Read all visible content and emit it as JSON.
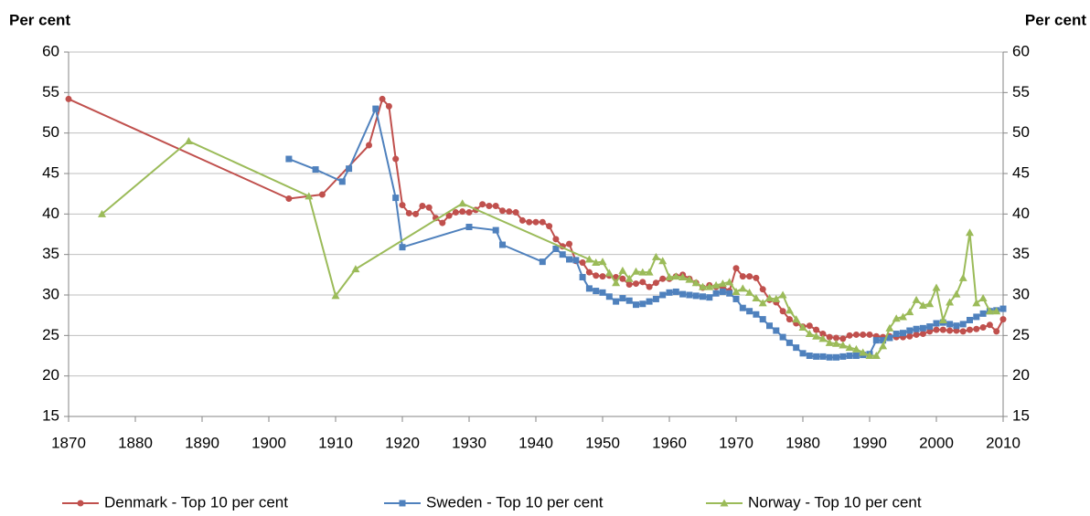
{
  "chart_data": {
    "type": "line",
    "y_label": "Per cent",
    "y2_label": "Per cent",
    "xlim": [
      1870,
      2010
    ],
    "xticks": [
      1870,
      1880,
      1890,
      1900,
      1910,
      1920,
      1930,
      1940,
      1950,
      1960,
      1970,
      1980,
      1990,
      2000,
      2010
    ],
    "ylim": [
      15,
      60
    ],
    "yticks": [
      15,
      20,
      25,
      30,
      35,
      40,
      45,
      50,
      55,
      60
    ],
    "y2lim": [
      15,
      60
    ],
    "y2ticks": [
      15,
      20,
      25,
      30,
      35,
      40,
      45,
      50,
      55,
      60
    ],
    "grid": true,
    "legend": "bottom",
    "series": [
      {
        "name": "Denmark - Top 10 per cent",
        "color": "#c0504d",
        "marker": "circle",
        "x": [
          1870,
          1903,
          1908,
          1915,
          1917,
          1918,
          1919,
          1920,
          1921,
          1922,
          1923,
          1924,
          1925,
          1926,
          1927,
          1928,
          1929,
          1930,
          1931,
          1932,
          1933,
          1934,
          1935,
          1936,
          1937,
          1938,
          1939,
          1940,
          1941,
          1942,
          1943,
          1944,
          1945,
          1946,
          1947,
          1948,
          1949,
          1950,
          1951,
          1952,
          1953,
          1954,
          1955,
          1956,
          1957,
          1958,
          1959,
          1960,
          1961,
          1962,
          1963,
          1964,
          1965,
          1966,
          1967,
          1968,
          1969,
          1970,
          1971,
          1972,
          1973,
          1974,
          1975,
          1976,
          1977,
          1978,
          1979,
          1980,
          1981,
          1982,
          1983,
          1984,
          1985,
          1986,
          1987,
          1988,
          1989,
          1990,
          1991,
          1992,
          1993,
          1994,
          1995,
          1996,
          1997,
          1998,
          1999,
          2000,
          2001,
          2002,
          2003,
          2004,
          2005,
          2006,
          2007,
          2008,
          2009,
          2010
        ],
        "values": [
          54.2,
          41.9,
          42.4,
          48.5,
          54.2,
          53.3,
          46.8,
          41.1,
          40.1,
          40.0,
          41.0,
          40.8,
          39.5,
          38.9,
          39.8,
          40.2,
          40.3,
          40.2,
          40.5,
          41.2,
          41.0,
          41.0,
          40.4,
          40.3,
          40.2,
          39.2,
          39.0,
          39.0,
          39.0,
          38.5,
          36.9,
          36.0,
          36.3,
          34.2,
          34.0,
          32.8,
          32.4,
          32.3,
          32.4,
          32.2,
          32.0,
          31.3,
          31.4,
          31.6,
          31.0,
          31.5,
          32.0,
          32.0,
          32.3,
          32.5,
          32.0,
          31.5,
          30.9,
          31.2,
          31.0,
          31.0,
          30.5,
          33.3,
          32.3,
          32.3,
          32.1,
          30.7,
          29.4,
          29.1,
          28.0,
          27.0,
          26.5,
          26.1,
          26.2,
          25.7,
          25.2,
          24.8,
          24.7,
          24.6,
          25.0,
          25.1,
          25.1,
          25.1,
          24.9,
          24.8,
          24.9,
          24.8,
          24.8,
          24.9,
          25.1,
          25.2,
          25.5,
          25.7,
          25.7,
          25.6,
          25.6,
          25.5,
          25.7,
          25.8,
          26.0,
          26.3,
          25.5,
          27.0
        ]
      },
      {
        "name": "Sweden - Top 10 per cent",
        "color": "#4f81bd",
        "marker": "square",
        "x": [
          1903,
          1907,
          1911,
          1912,
          1916,
          1919,
          1920,
          1930,
          1934,
          1935,
          1941,
          1943,
          1944,
          1945,
          1946,
          1947,
          1948,
          1949,
          1950,
          1951,
          1952,
          1953,
          1954,
          1955,
          1956,
          1957,
          1958,
          1959,
          1960,
          1961,
          1962,
          1963,
          1964,
          1965,
          1966,
          1967,
          1968,
          1969,
          1970,
          1971,
          1972,
          1973,
          1974,
          1975,
          1976,
          1977,
          1978,
          1979,
          1980,
          1981,
          1982,
          1983,
          1984,
          1985,
          1986,
          1987,
          1988,
          1989,
          1990,
          1991,
          1992,
          1993,
          1994,
          1995,
          1996,
          1997,
          1998,
          1999,
          2000,
          2001,
          2002,
          2003,
          2004,
          2005,
          2006,
          2007,
          2008,
          2009,
          2010
        ],
        "values": [
          46.8,
          45.5,
          44.0,
          45.6,
          53.0,
          42.0,
          35.9,
          38.4,
          38.0,
          36.2,
          34.1,
          35.7,
          35.0,
          34.4,
          34.3,
          32.2,
          30.8,
          30.5,
          30.3,
          29.8,
          29.2,
          29.6,
          29.3,
          28.8,
          28.9,
          29.2,
          29.5,
          30.0,
          30.3,
          30.4,
          30.1,
          30.0,
          29.9,
          29.8,
          29.7,
          30.2,
          30.4,
          30.2,
          29.5,
          28.4,
          28.0,
          27.6,
          27.0,
          26.2,
          25.6,
          24.8,
          24.1,
          23.5,
          22.8,
          22.5,
          22.4,
          22.4,
          22.3,
          22.3,
          22.4,
          22.5,
          22.5,
          22.6,
          22.7,
          24.4,
          24.4,
          24.7,
          25.2,
          25.3,
          25.6,
          25.8,
          25.9,
          26.1,
          26.5,
          26.6,
          26.4,
          26.2,
          26.4,
          26.9,
          27.3,
          27.7,
          28.0,
          28.1,
          28.3
        ]
      },
      {
        "name": "Norway - Top 10 per cent",
        "color": "#9bbb59",
        "marker": "triangle",
        "x": [
          1875,
          1888,
          1906,
          1910,
          1913,
          1929,
          1948,
          1949,
          1950,
          1951,
          1952,
          1953,
          1954,
          1955,
          1956,
          1957,
          1958,
          1959,
          1960,
          1961,
          1962,
          1963,
          1964,
          1965,
          1966,
          1967,
          1968,
          1969,
          1970,
          1971,
          1972,
          1973,
          1974,
          1975,
          1976,
          1977,
          1978,
          1979,
          1980,
          1981,
          1982,
          1983,
          1984,
          1985,
          1986,
          1987,
          1988,
          1989,
          1990,
          1991,
          1992,
          1993,
          1994,
          1995,
          1996,
          1997,
          1998,
          1999,
          2000,
          2001,
          2002,
          2003,
          2004,
          2005,
          2006,
          2007,
          2008,
          2009
        ],
        "values": [
          40.0,
          49.0,
          42.2,
          29.9,
          33.2,
          41.3,
          34.4,
          34.0,
          34.1,
          32.7,
          31.5,
          33.0,
          32.0,
          32.9,
          32.8,
          32.8,
          34.7,
          34.2,
          32.2,
          32.3,
          32.2,
          31.9,
          31.5,
          31.0,
          31.0,
          31.2,
          31.4,
          31.6,
          30.4,
          30.8,
          30.3,
          29.6,
          29.0,
          29.6,
          29.5,
          30.0,
          28.1,
          27.0,
          26.0,
          25.2,
          24.9,
          24.6,
          24.1,
          24.0,
          23.8,
          23.5,
          23.3,
          22.9,
          22.5,
          22.5,
          23.7,
          25.9,
          27.1,
          27.3,
          27.9,
          29.4,
          28.7,
          28.9,
          30.9,
          26.9,
          29.1,
          30.1,
          32.1,
          37.7,
          29.0,
          29.6,
          28.0,
          28.0
        ]
      }
    ]
  }
}
